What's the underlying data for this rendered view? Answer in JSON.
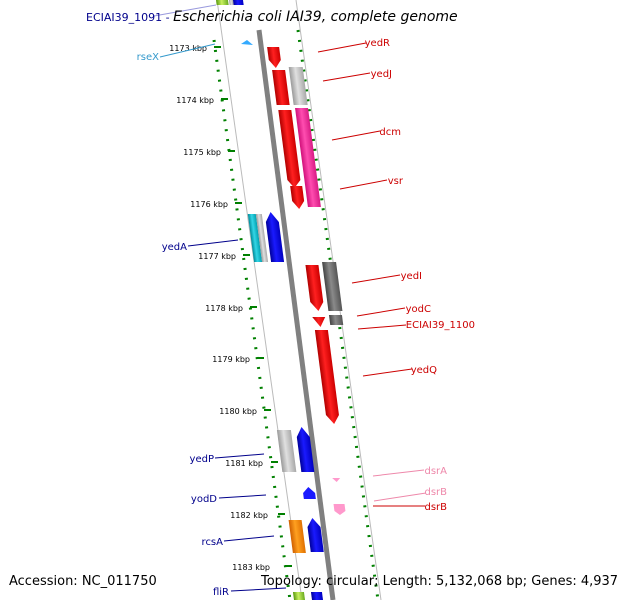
{
  "header": {
    "locus_id": "ECIAI39_1091",
    "separator": " - ",
    "title": "Escherichia coli IAI39, complete genome"
  },
  "footer": {
    "accession": "Accession: NC_011750",
    "summary": "Topology: circular; Length: 5,132,068 bp; Genes: 4,937"
  },
  "colors": {
    "backbone": "#808080",
    "ruler_dots": "#008000",
    "left_label": "#00008b",
    "right_label": "#cc0000",
    "light_blue_label": "#3399cc",
    "pink_label": "#ee88aa"
  },
  "ruler": {
    "ticks": [
      "1173 kbp",
      "1174 kbp",
      "1175 kbp",
      "1176 kbp",
      "1177 kbp",
      "1178 kbp",
      "1179 kbp",
      "1180 kbp",
      "1181 kbp",
      "1182 kbp",
      "1183 kbp"
    ]
  },
  "left_labels": [
    "rseX",
    "yedA",
    "yedP",
    "yodD",
    "rcsA",
    "fliR"
  ],
  "right_labels": [
    "yedR",
    "yedJ",
    "dcm",
    "vsr",
    "yedI",
    "yodC",
    "ECIAI39_1100",
    "yedQ",
    "dsrA",
    "dsrB",
    "dsrB"
  ]
}
